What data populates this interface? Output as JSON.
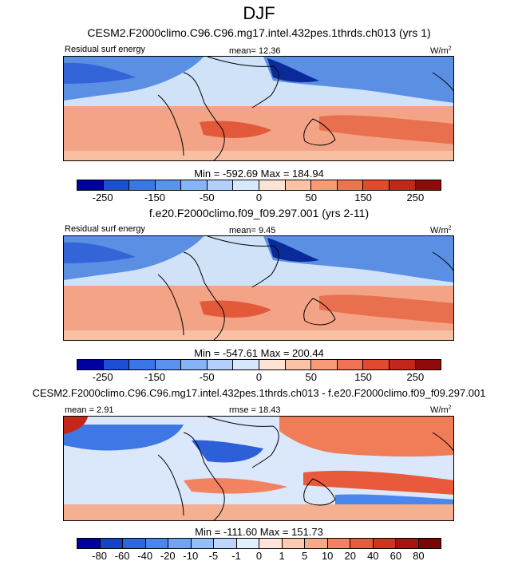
{
  "figure": {
    "title": "DJF"
  },
  "chart_data": [
    {
      "type": "heatmap",
      "title": "CESM2.F2000climo.C96.C96.mg17.intel.432pes.1thrds.ch013 (yrs 1)",
      "left_label": "Residual surf energy",
      "center_label": "mean=  12.36",
      "units_base": "W/m",
      "units_exp": "2",
      "stats": "Min = -592.69 Max = 184.94",
      "mean": 12.36,
      "min": -592.69,
      "max": 184.94,
      "colorbar_colors": [
        "#0000a0",
        "#1d4fd4",
        "#3a76e8",
        "#5b92f0",
        "#87b3f7",
        "#b3d0fa",
        "#d7e8fc",
        "#fde3d3",
        "#fbc2a6",
        "#f69a78",
        "#ef7252",
        "#e24a2f",
        "#c3261a",
        "#8f0a0a"
      ],
      "colorbar_ticks": [
        "-250",
        "-150",
        "-50",
        "0",
        "50",
        "150",
        "250"
      ],
      "tick_boundaries": [
        1,
        3,
        5,
        7,
        9,
        11,
        13
      ]
    },
    {
      "type": "heatmap",
      "title": "f.e20.F2000climo.f09_f09.297.001 (yrs 2-11)",
      "left_label": "Residual surf energy",
      "center_label": "mean=   9.45",
      "units_base": "W/m",
      "units_exp": "2",
      "stats": "Min = -547.61 Max = 200.44",
      "mean": 9.45,
      "min": -547.61,
      "max": 200.44,
      "colorbar_colors": [
        "#0000a0",
        "#1d4fd4",
        "#3a76e8",
        "#5b92f0",
        "#87b3f7",
        "#b3d0fa",
        "#d7e8fc",
        "#fde3d3",
        "#fbc2a6",
        "#f69a78",
        "#ef7252",
        "#e24a2f",
        "#c3261a",
        "#8f0a0a"
      ],
      "colorbar_ticks": [
        "-250",
        "-150",
        "-50",
        "0",
        "50",
        "150",
        "250"
      ],
      "tick_boundaries": [
        1,
        3,
        5,
        7,
        9,
        11,
        13
      ]
    },
    {
      "type": "heatmap",
      "title": "CESM2.F2000climo.C96.C96.mg17.intel.432pes.1thrds.ch013 - f.e20.F2000climo.f09_f09.297.001",
      "left_label": "mean =   2.91",
      "center_label": "rmse =  18.43",
      "units_base": "W/m",
      "units_exp": "2",
      "stats": "Min = -111.60 Max = 151.73",
      "mean": 2.91,
      "rmse": 18.43,
      "min": -111.6,
      "max": 151.73,
      "colorbar_colors": [
        "#0000a0",
        "#1543c8",
        "#2d67de",
        "#4a86ec",
        "#6ea4f3",
        "#95bff8",
        "#bcd7fb",
        "#e2eefd",
        "#fde6d8",
        "#fbcbb1",
        "#f8a988",
        "#f28260",
        "#e85a3b",
        "#d23220",
        "#aa1212",
        "#7a0505"
      ],
      "colorbar_ticks": [
        "-80",
        "-60",
        "-40",
        "-20",
        "-10",
        "-5",
        "-1",
        "0",
        "1",
        "5",
        "10",
        "20",
        "40",
        "60",
        "80"
      ],
      "tick_boundaries": [
        1,
        2,
        3,
        4,
        5,
        6,
        7,
        8,
        9,
        10,
        11,
        12,
        13,
        14,
        15
      ]
    }
  ]
}
